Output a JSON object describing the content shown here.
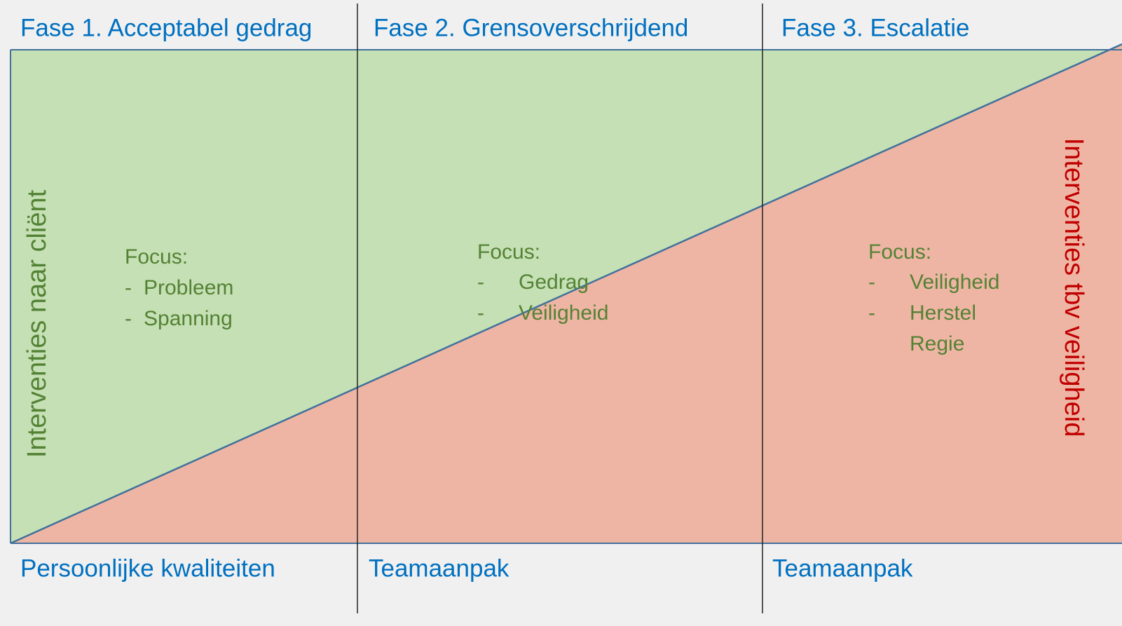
{
  "phases": [
    "Fase 1. Acceptabel gedrag",
    "Fase 2. Grensoverschrijdend",
    "Fase 3. Escalatie"
  ],
  "approaches": [
    "Persoonlijke kwaliteiten",
    "Teamaanpak",
    "Teamaanpak"
  ],
  "side_labels": {
    "left": "Interventies naar cliënt",
    "right": "Interventies tbv veiligheid"
  },
  "focus": [
    {
      "title": "Focus:",
      "items": [
        "Probleem",
        "Spanning"
      ]
    },
    {
      "title": "Focus:",
      "items": [
        "Gedrag",
        "Veiligheid"
      ]
    },
    {
      "title": "Focus:",
      "items": [
        "Veiligheid",
        "Herstel",
        "Regie"
      ]
    }
  ]
}
